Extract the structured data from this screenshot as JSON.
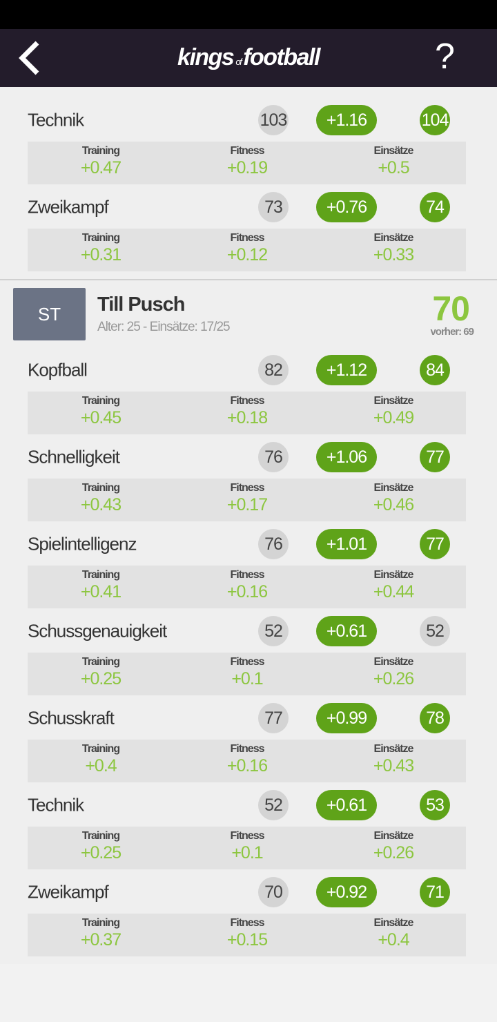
{
  "header": {
    "logo_main": "kings",
    "logo_of": "of",
    "logo_end": "football",
    "help": "?"
  },
  "labels": [
    "Training",
    "Fitness",
    "Einsätze"
  ],
  "previous_player": {
    "skills": [
      {
        "name": "Technik",
        "current": "103",
        "change": "+1.16",
        "new": "104",
        "new_up": true,
        "parts": [
          "+0.47",
          "+0.19",
          "+0.5"
        ]
      },
      {
        "name": "Zweikampf",
        "current": "73",
        "change": "+0.76",
        "new": "74",
        "new_up": true,
        "parts": [
          "+0.31",
          "+0.12",
          "+0.33"
        ]
      }
    ]
  },
  "player": {
    "position": "ST",
    "name": "Till Pusch",
    "info": "Alter: 25 - Einsätze: 17/25",
    "rating": "70",
    "previous": "vorher: 69",
    "skills": [
      {
        "name": "Kopfball",
        "current": "82",
        "change": "+1.12",
        "new": "84",
        "new_up": true,
        "parts": [
          "+0.45",
          "+0.18",
          "+0.49"
        ]
      },
      {
        "name": "Schnelligkeit",
        "current": "76",
        "change": "+1.06",
        "new": "77",
        "new_up": true,
        "parts": [
          "+0.43",
          "+0.17",
          "+0.46"
        ]
      },
      {
        "name": "Spielintelligenz",
        "current": "76",
        "change": "+1.01",
        "new": "77",
        "new_up": true,
        "parts": [
          "+0.41",
          "+0.16",
          "+0.44"
        ]
      },
      {
        "name": "Schussgenauigkeit",
        "current": "52",
        "change": "+0.61",
        "new": "52",
        "new_up": false,
        "parts": [
          "+0.25",
          "+0.1",
          "+0.26"
        ]
      },
      {
        "name": "Schusskraft",
        "current": "77",
        "change": "+0.99",
        "new": "78",
        "new_up": true,
        "parts": [
          "+0.4",
          "+0.16",
          "+0.43"
        ]
      },
      {
        "name": "Technik",
        "current": "52",
        "change": "+0.61",
        "new": "53",
        "new_up": true,
        "parts": [
          "+0.25",
          "+0.1",
          "+0.26"
        ]
      },
      {
        "name": "Zweikampf",
        "current": "70",
        "change": "+0.92",
        "new": "71",
        "new_up": true,
        "parts": [
          "+0.37",
          "+0.15",
          "+0.4"
        ]
      }
    ]
  }
}
